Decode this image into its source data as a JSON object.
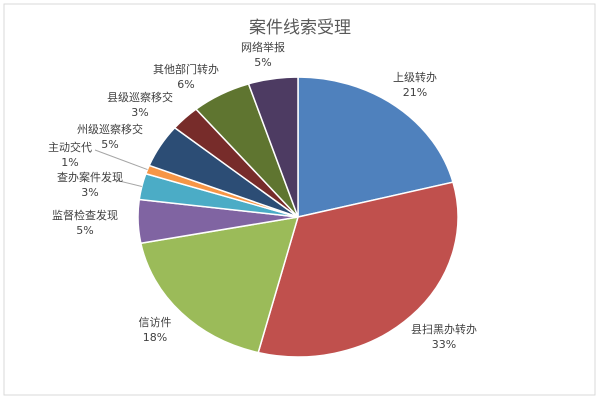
{
  "chart_data": {
    "type": "pie",
    "title": "案件线索受理",
    "categories": [
      "上级转办",
      "县扫黑办转办",
      "信访件",
      "监督检查发现",
      "查办案件发现",
      "主动交代",
      "州级巡察移交",
      "县级巡察移交",
      "其他部门转办",
      "网络举报"
    ],
    "values": [
      21,
      33,
      18,
      5,
      3,
      1,
      5,
      3,
      6,
      5
    ],
    "value_labels": [
      "21%",
      "33%",
      "18%",
      "5%",
      "3%",
      "1%",
      "5%",
      "3%",
      "6%",
      "5%"
    ],
    "colors": [
      "#4f81bd",
      "#c0504d",
      "#9bbb59",
      "#8064a2",
      "#4bacc6",
      "#f79646",
      "#2c4d75",
      "#772c2a",
      "#5f7530",
      "#4d3b62"
    ]
  }
}
